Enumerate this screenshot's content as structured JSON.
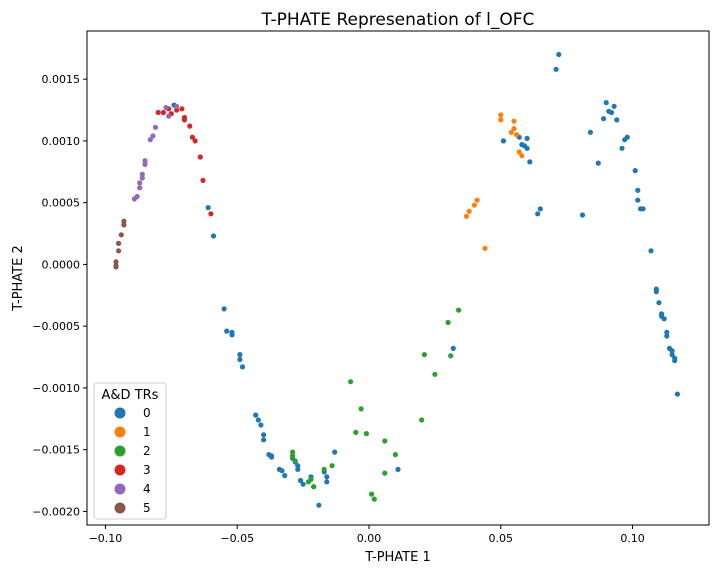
{
  "chart_data": {
    "type": "scatter",
    "title": "T-PHATE Represenation of l_OFC",
    "xlabel": "T-PHATE 1",
    "ylabel": "T-PHATE 2",
    "xlim": [
      -0.107,
      0.129
    ],
    "ylim": [
      -0.00211,
      0.00189
    ],
    "xticks": [
      -0.1,
      -0.05,
      0.0,
      0.05,
      0.1
    ],
    "xtick_labels": [
      "−0.10",
      "−0.05",
      "0.00",
      "0.05",
      "0.10"
    ],
    "yticks": [
      0.0015,
      0.001,
      0.0005,
      0.0,
      -0.0005,
      -0.001,
      -0.0015,
      -0.002
    ],
    "ytick_labels": [
      "0.0015",
      "0.0010",
      "0.0005",
      "0.0000",
      "−0.0005",
      "−0.0010",
      "−0.0015",
      "−0.0020"
    ],
    "grid": false,
    "legend": {
      "title": "A&D TRs",
      "placement": "lower-left",
      "entries": [
        "0",
        "1",
        "2",
        "3",
        "4",
        "5"
      ]
    },
    "series": [
      {
        "name": "0",
        "color": "#1f77b4",
        "points": [
          [
            -0.074,
            0.00129
          ],
          [
            -0.061,
            0.00046
          ],
          [
            -0.059,
            0.00023
          ],
          [
            -0.055,
            -0.00036
          ],
          [
            -0.054,
            -0.00054
          ],
          [
            -0.052,
            -0.00055
          ],
          [
            -0.052,
            -0.00057
          ],
          [
            -0.049,
            -0.00073
          ],
          [
            -0.049,
            -0.00077
          ],
          [
            -0.048,
            -0.00083
          ],
          [
            -0.043,
            -0.00122
          ],
          [
            -0.042,
            -0.00126
          ],
          [
            -0.041,
            -0.0013
          ],
          [
            -0.04,
            -0.00138
          ],
          [
            -0.04,
            -0.00142
          ],
          [
            -0.038,
            -0.00154
          ],
          [
            -0.037,
            -0.00155
          ],
          [
            -0.037,
            -0.00156
          ],
          [
            -0.034,
            -0.00166
          ],
          [
            -0.033,
            -0.00167
          ],
          [
            -0.032,
            -0.00171
          ],
          [
            -0.029,
            -0.00157
          ],
          [
            -0.028,
            -0.0016
          ],
          [
            -0.027,
            -0.00163
          ],
          [
            -0.027,
            -0.00166
          ],
          [
            -0.026,
            -0.00175
          ],
          [
            -0.025,
            -0.00178
          ],
          [
            -0.022,
            -0.00172
          ],
          [
            -0.021,
            -0.0018
          ],
          [
            -0.019,
            -0.00195
          ],
          [
            -0.017,
            -0.00168
          ],
          [
            -0.016,
            -0.00172
          ],
          [
            -0.016,
            -0.00176
          ],
          [
            -0.013,
            -0.00152
          ],
          [
            0.011,
            -0.00166
          ],
          [
            0.032,
            -0.00068
          ],
          [
            0.051,
            0.001
          ],
          [
            0.057,
            0.00103
          ],
          [
            0.058,
            0.00097
          ],
          [
            0.059,
            0.00096
          ],
          [
            0.06,
            0.00102
          ],
          [
            0.06,
            0.00094
          ],
          [
            0.061,
            0.00083
          ],
          [
            0.064,
            0.00041
          ],
          [
            0.065,
            0.00045
          ],
          [
            0.071,
            0.00158
          ],
          [
            0.072,
            0.0017
          ],
          [
            0.081,
            0.0004
          ],
          [
            0.084,
            0.00107
          ],
          [
            0.087,
            0.00082
          ],
          [
            0.089,
            0.00118
          ],
          [
            0.09,
            0.00131
          ],
          [
            0.091,
            0.00124
          ],
          [
            0.092,
            0.00123
          ],
          [
            0.093,
            0.00128
          ],
          [
            0.094,
            0.00117
          ],
          [
            0.096,
            0.00094
          ],
          [
            0.097,
            0.00101
          ],
          [
            0.098,
            0.00103
          ],
          [
            0.101,
            0.00076
          ],
          [
            0.102,
            0.0006
          ],
          [
            0.102,
            0.00052
          ],
          [
            0.103,
            0.00045
          ],
          [
            0.104,
            0.00045
          ],
          [
            0.107,
            0.00011
          ],
          [
            0.109,
            -0.0002
          ],
          [
            0.109,
            -0.00022
          ],
          [
            0.11,
            -0.00031
          ],
          [
            0.111,
            -0.0004
          ],
          [
            0.111,
            -0.00042
          ],
          [
            0.112,
            -0.00044
          ],
          [
            0.113,
            -0.00055
          ],
          [
            0.113,
            -0.00058
          ],
          [
            0.114,
            -0.00068
          ],
          [
            0.115,
            -0.0007
          ],
          [
            0.115,
            -0.00073
          ],
          [
            0.116,
            -0.00076
          ],
          [
            0.116,
            -0.00078
          ],
          [
            0.117,
            -0.00105
          ]
        ]
      },
      {
        "name": "1",
        "color": "#ff7f0e",
        "points": [
          [
            0.037,
            0.00039
          ],
          [
            0.038,
            0.00043
          ],
          [
            0.04,
            0.00048
          ],
          [
            0.041,
            0.00052
          ],
          [
            0.044,
            0.00013
          ],
          [
            0.05,
            0.00121
          ],
          [
            0.05,
            0.00117
          ],
          [
            0.054,
            0.00107
          ],
          [
            0.055,
            0.0011
          ],
          [
            0.055,
            0.00116
          ],
          [
            0.056,
            0.00105
          ],
          [
            0.057,
            0.00091
          ],
          [
            0.058,
            0.00088
          ]
        ]
      },
      {
        "name": "2",
        "color": "#2ca02c",
        "points": [
          [
            -0.029,
            -0.00152
          ],
          [
            -0.029,
            -0.00155
          ],
          [
            -0.028,
            -0.00159
          ],
          [
            -0.023,
            -0.00176
          ],
          [
            -0.022,
            -0.00174
          ],
          [
            -0.021,
            -0.0018
          ],
          [
            -0.017,
            -0.00166
          ],
          [
            -0.014,
            -0.00163
          ],
          [
            -0.007,
            -0.00095
          ],
          [
            -0.005,
            -0.00136
          ],
          [
            -0.003,
            -0.00117
          ],
          [
            -0.001,
            -0.00137
          ],
          [
            0.001,
            -0.00186
          ],
          [
            0.002,
            -0.0019
          ],
          [
            0.006,
            -0.00169
          ],
          [
            0.006,
            -0.00143
          ],
          [
            0.01,
            -0.00154
          ],
          [
            0.02,
            -0.00126
          ],
          [
            0.021,
            -0.00073
          ],
          [
            0.025,
            -0.00089
          ],
          [
            0.03,
            -0.00047
          ],
          [
            0.031,
            -0.00074
          ],
          [
            0.034,
            -0.00037
          ]
        ]
      },
      {
        "name": "3",
        "color": "#d62728",
        "points": [
          [
            -0.08,
            0.00123
          ],
          [
            -0.078,
            0.00123
          ],
          [
            -0.076,
            0.00126
          ],
          [
            -0.075,
            0.00122
          ],
          [
            -0.073,
            0.00125
          ],
          [
            -0.071,
            0.00126
          ],
          [
            -0.07,
            0.00119
          ],
          [
            -0.07,
            0.00117
          ],
          [
            -0.068,
            0.00112
          ],
          [
            -0.067,
            0.00103
          ],
          [
            -0.066,
            0.001
          ],
          [
            -0.064,
            0.00087
          ],
          [
            -0.063,
            0.00068
          ],
          [
            -0.06,
            0.00041
          ]
        ]
      },
      {
        "name": "4",
        "color": "#9467bd",
        "points": [
          [
            -0.089,
            0.00053
          ],
          [
            -0.088,
            0.00055
          ],
          [
            -0.087,
            0.00062
          ],
          [
            -0.087,
            0.00066
          ],
          [
            -0.086,
            0.0007
          ],
          [
            -0.086,
            0.00073
          ],
          [
            -0.085,
            0.00081
          ],
          [
            -0.085,
            0.00084
          ],
          [
            -0.083,
            0.00101
          ],
          [
            -0.082,
            0.00104
          ],
          [
            -0.081,
            0.00111
          ],
          [
            -0.077,
            0.00127
          ],
          [
            -0.076,
            0.0012
          ],
          [
            -0.073,
            0.00128
          ]
        ]
      },
      {
        "name": "5",
        "color": "#8c564b",
        "points": [
          [
            -0.096,
            -2e-05
          ],
          [
            -0.096,
            2e-05
          ],
          [
            -0.095,
            0.00011
          ],
          [
            -0.095,
            0.00017
          ],
          [
            -0.094,
            0.00024
          ],
          [
            -0.093,
            0.00032
          ],
          [
            -0.093,
            0.00035
          ],
          [
            -0.096,
            -1e-05
          ]
        ]
      }
    ]
  }
}
